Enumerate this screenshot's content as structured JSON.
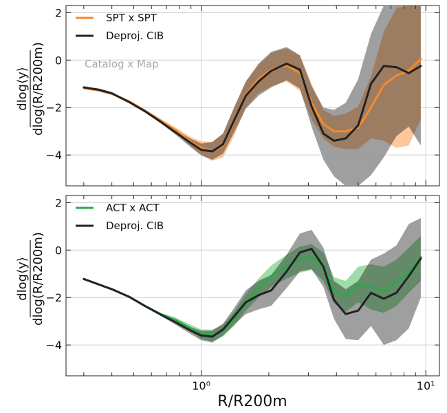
{
  "figure": {
    "xlabel": "R/R200m",
    "ylabel": "dlog⟨y⟩ / dlog(R/R200m)"
  },
  "chart_data": [
    {
      "type": "line",
      "panel": "top",
      "annotation": "Catalog x Map",
      "xscale": "log",
      "xlim": [
        0.25,
        11.5
      ],
      "ylim": [
        -5.3,
        2.3
      ],
      "yticks": [
        -4,
        -2,
        0,
        2
      ],
      "grid": true,
      "legend_position": "top-left",
      "series": [
        {
          "name": "SPT x SPT",
          "color": "#f58a2a",
          "band_color": "#f9b47a",
          "x": [
            0.3,
            0.35,
            0.4,
            0.48,
            0.56,
            0.66,
            0.77,
            0.9,
            1.0,
            1.12,
            1.25,
            1.4,
            1.58,
            1.8,
            2.05,
            2.4,
            2.75,
            3.1,
            3.5,
            3.9,
            4.4,
            5.0,
            5.7,
            6.5,
            7.4,
            8.4,
            9.5
          ],
          "y": [
            -1.18,
            -1.28,
            -1.42,
            -1.75,
            -2.12,
            -2.55,
            -2.95,
            -3.45,
            -3.7,
            -3.85,
            -3.6,
            -2.6,
            -1.45,
            -0.8,
            -0.4,
            -0.22,
            -0.55,
            -1.8,
            -2.7,
            -3.0,
            -3.0,
            -2.85,
            -2.0,
            -1.05,
            -0.65,
            -0.45,
            0.05
          ],
          "y_lower": [
            -1.23,
            -1.33,
            -1.47,
            -1.8,
            -2.17,
            -2.62,
            -3.05,
            -3.65,
            -3.98,
            -4.25,
            -4.1,
            -3.2,
            -2.0,
            -1.4,
            -1.1,
            -0.9,
            -1.3,
            -2.5,
            -3.3,
            -3.65,
            -3.75,
            -3.75,
            -3.3,
            -3.4,
            -3.7,
            -3.6,
            -2.5
          ],
          "y_upper": [
            -1.13,
            -1.23,
            -1.37,
            -1.7,
            -2.07,
            -2.48,
            -2.85,
            -3.25,
            -3.42,
            -3.45,
            -3.1,
            -2.0,
            -0.9,
            -0.2,
            0.3,
            0.5,
            0.2,
            -1.0,
            -2.1,
            -2.35,
            -2.25,
            -1.95,
            -0.7,
            1.2,
            2.2,
            2.3,
            2.3
          ]
        },
        {
          "name": "Deproj. CIB",
          "color": "#222222",
          "band_color": "#9a9a9a",
          "x": [
            0.3,
            0.35,
            0.4,
            0.48,
            0.56,
            0.66,
            0.77,
            0.9,
            1.0,
            1.12,
            1.25,
            1.4,
            1.58,
            1.8,
            2.05,
            2.4,
            2.75,
            3.1,
            3.5,
            3.9,
            4.4,
            5.0,
            5.7,
            6.5,
            7.4,
            8.4,
            9.5
          ],
          "y": [
            -1.15,
            -1.25,
            -1.4,
            -1.78,
            -2.15,
            -2.6,
            -3.05,
            -3.5,
            -3.78,
            -3.85,
            -3.55,
            -2.55,
            -1.5,
            -0.9,
            -0.45,
            -0.15,
            -0.4,
            -1.95,
            -3.1,
            -3.4,
            -3.3,
            -2.75,
            -1.0,
            -0.25,
            -0.3,
            -0.55,
            -0.25
          ],
          "y_lower": [
            -1.2,
            -1.3,
            -1.45,
            -1.83,
            -2.2,
            -2.67,
            -3.15,
            -3.68,
            -4.02,
            -4.2,
            -3.95,
            -3.05,
            -2.05,
            -1.5,
            -1.15,
            -0.85,
            -1.2,
            -2.8,
            -4.2,
            -4.9,
            -5.3,
            -5.3,
            -4.85,
            -4.1,
            -3.2,
            -2.8,
            -3.6
          ],
          "y_upper": [
            -1.1,
            -1.2,
            -1.35,
            -1.73,
            -2.1,
            -2.53,
            -2.95,
            -3.32,
            -3.52,
            -3.45,
            -3.1,
            -2.0,
            -0.9,
            -0.15,
            0.35,
            0.55,
            0.2,
            -1.1,
            -2.0,
            -2.1,
            -1.8,
            -0.8,
            1.1,
            2.3,
            2.3,
            2.3,
            2.3
          ]
        }
      ]
    },
    {
      "type": "line",
      "panel": "bottom",
      "xscale": "log",
      "xlim": [
        0.25,
        11.5
      ],
      "xticks": [
        1,
        10
      ],
      "xtick_labels": [
        "10⁰",
        "10¹"
      ],
      "ylim": [
        -5.3,
        2.3
      ],
      "yticks": [
        -4,
        -2,
        0,
        2
      ],
      "grid": true,
      "legend_position": "top-left",
      "series": [
        {
          "name": "ACT x ACT",
          "color": "#2aa84a",
          "band_color": "#7fd08a",
          "x": [
            0.3,
            0.35,
            0.4,
            0.48,
            0.56,
            0.66,
            0.77,
            0.9,
            1.0,
            1.12,
            1.25,
            1.4,
            1.58,
            1.8,
            2.05,
            2.4,
            2.75,
            3.1,
            3.5,
            3.9,
            4.4,
            5.0,
            5.7,
            6.5,
            7.4,
            8.4,
            9.5
          ],
          "y": [
            -1.22,
            -1.45,
            -1.65,
            -1.98,
            -2.35,
            -2.7,
            -2.95,
            -3.3,
            -3.55,
            -3.6,
            -3.4,
            -2.9,
            -2.2,
            -1.6,
            -1.1,
            -0.7,
            -0.4,
            -0.3,
            -0.7,
            -1.7,
            -1.95,
            -1.45,
            -1.55,
            -1.75,
            -1.35,
            -0.95,
            -0.3
          ],
          "y_lower": [
            -1.24,
            -1.47,
            -1.67,
            -2.0,
            -2.38,
            -2.75,
            -3.05,
            -3.45,
            -3.75,
            -3.85,
            -3.65,
            -3.2,
            -2.55,
            -2.0,
            -1.55,
            -1.2,
            -0.95,
            -0.85,
            -1.3,
            -2.25,
            -2.6,
            -2.2,
            -2.5,
            -2.65,
            -2.35,
            -1.8,
            -1.3
          ],
          "y_upper": [
            -1.2,
            -1.43,
            -1.63,
            -1.96,
            -2.32,
            -2.65,
            -2.85,
            -3.15,
            -3.35,
            -3.35,
            -3.15,
            -2.6,
            -1.85,
            -1.2,
            -0.65,
            -0.2,
            0.15,
            0.25,
            -0.1,
            -1.15,
            -1.3,
            -0.7,
            -0.6,
            -0.7,
            -0.4,
            0.1,
            0.6
          ]
        },
        {
          "name": "Deproj. CIB",
          "color": "#222222",
          "band_color": "#9a9a9a",
          "x": [
            0.3,
            0.35,
            0.4,
            0.48,
            0.56,
            0.66,
            0.77,
            0.9,
            1.0,
            1.12,
            1.25,
            1.4,
            1.58,
            1.8,
            2.05,
            2.4,
            2.75,
            3.1,
            3.5,
            3.9,
            4.4,
            5.0,
            5.7,
            6.5,
            7.4,
            8.4,
            9.5
          ],
          "y": [
            -1.22,
            -1.45,
            -1.65,
            -1.98,
            -2.35,
            -2.72,
            -3.05,
            -3.4,
            -3.6,
            -3.65,
            -3.35,
            -2.8,
            -2.2,
            -1.9,
            -1.7,
            -0.9,
            -0.1,
            0.05,
            -0.7,
            -2.1,
            -2.7,
            -2.55,
            -1.8,
            -2.05,
            -1.8,
            -1.1,
            -0.35
          ],
          "y_lower": [
            -1.24,
            -1.47,
            -1.67,
            -2.0,
            -2.38,
            -2.77,
            -3.15,
            -3.55,
            -3.8,
            -3.9,
            -3.6,
            -3.15,
            -2.7,
            -2.5,
            -2.35,
            -1.6,
            -0.9,
            -0.8,
            -1.55,
            -2.9,
            -3.75,
            -3.8,
            -3.2,
            -4.0,
            -3.8,
            -3.3,
            -2.0
          ],
          "y_upper": [
            -1.2,
            -1.43,
            -1.63,
            -1.96,
            -2.32,
            -2.67,
            -2.95,
            -3.25,
            -3.4,
            -3.4,
            -3.1,
            -2.45,
            -1.7,
            -1.3,
            -1.05,
            -0.2,
            0.7,
            0.85,
            0.1,
            -1.3,
            -1.65,
            -1.3,
            -0.4,
            -0.15,
            0.2,
            1.1,
            1.35
          ]
        }
      ]
    }
  ]
}
